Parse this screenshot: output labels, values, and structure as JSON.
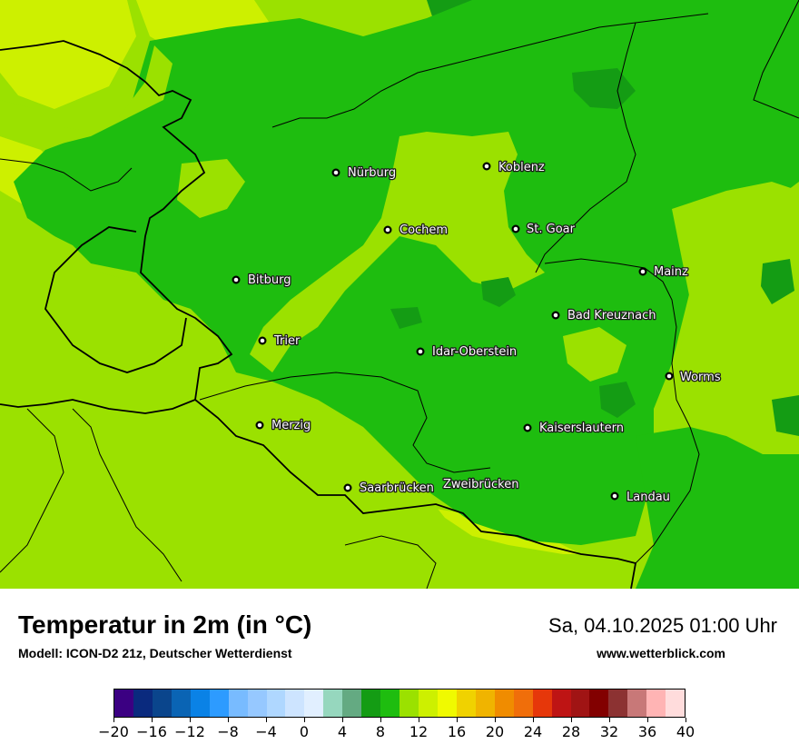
{
  "map": {
    "colors": {
      "c8": "#149c14",
      "c10": "#1ebd0f",
      "c12": "#9be100",
      "c14": "#cdf000",
      "border": "#000000"
    },
    "cities": [
      {
        "name": "Nürburg"
      },
      {
        "name": "Koblenz"
      },
      {
        "name": "Cochem"
      },
      {
        "name": "St. Goar"
      },
      {
        "name": "Mainz"
      },
      {
        "name": "Bitburg"
      },
      {
        "name": "Bad Kreuznach"
      },
      {
        "name": "Trier"
      },
      {
        "name": "Idar-Oberstein"
      },
      {
        "name": "Worms"
      },
      {
        "name": "Merzig"
      },
      {
        "name": "Kaiserslautern"
      },
      {
        "name": "Saarbrücken"
      },
      {
        "name": "Zweibrücken"
      },
      {
        "name": "Landau"
      }
    ]
  },
  "header": {
    "title": "Temperatur in 2m (in °C)",
    "subtitle": "Modell: ICON-D2 21z, Deutscher Wetterdienst",
    "datetime": "Sa, 04.10.2025 01:00 Uhr",
    "website": "www.wetterblick.com"
  },
  "legend": {
    "colors": [
      "#3b0082",
      "#0a2a7e",
      "#0a458c",
      "#0a64b4",
      "#0a82e6",
      "#2d9bff",
      "#78bbff",
      "#96c8ff",
      "#afd7ff",
      "#cde4ff",
      "#e1efff",
      "#96d7be",
      "#64aa82",
      "#149c14",
      "#1ebd0f",
      "#9be100",
      "#cdf000",
      "#f0fa00",
      "#f0d200",
      "#f0b400",
      "#f08c00",
      "#f06e0a",
      "#e6370a",
      "#be1414",
      "#a01414",
      "#820000",
      "#8c3232",
      "#c87878",
      "#ffb4b4",
      "#ffdcdc"
    ],
    "tick_labels": [
      "−20",
      "−16",
      "−12",
      "−8",
      "−4",
      "0",
      "4",
      "8",
      "12",
      "16",
      "20",
      "24",
      "28",
      "32",
      "36",
      "40"
    ]
  }
}
